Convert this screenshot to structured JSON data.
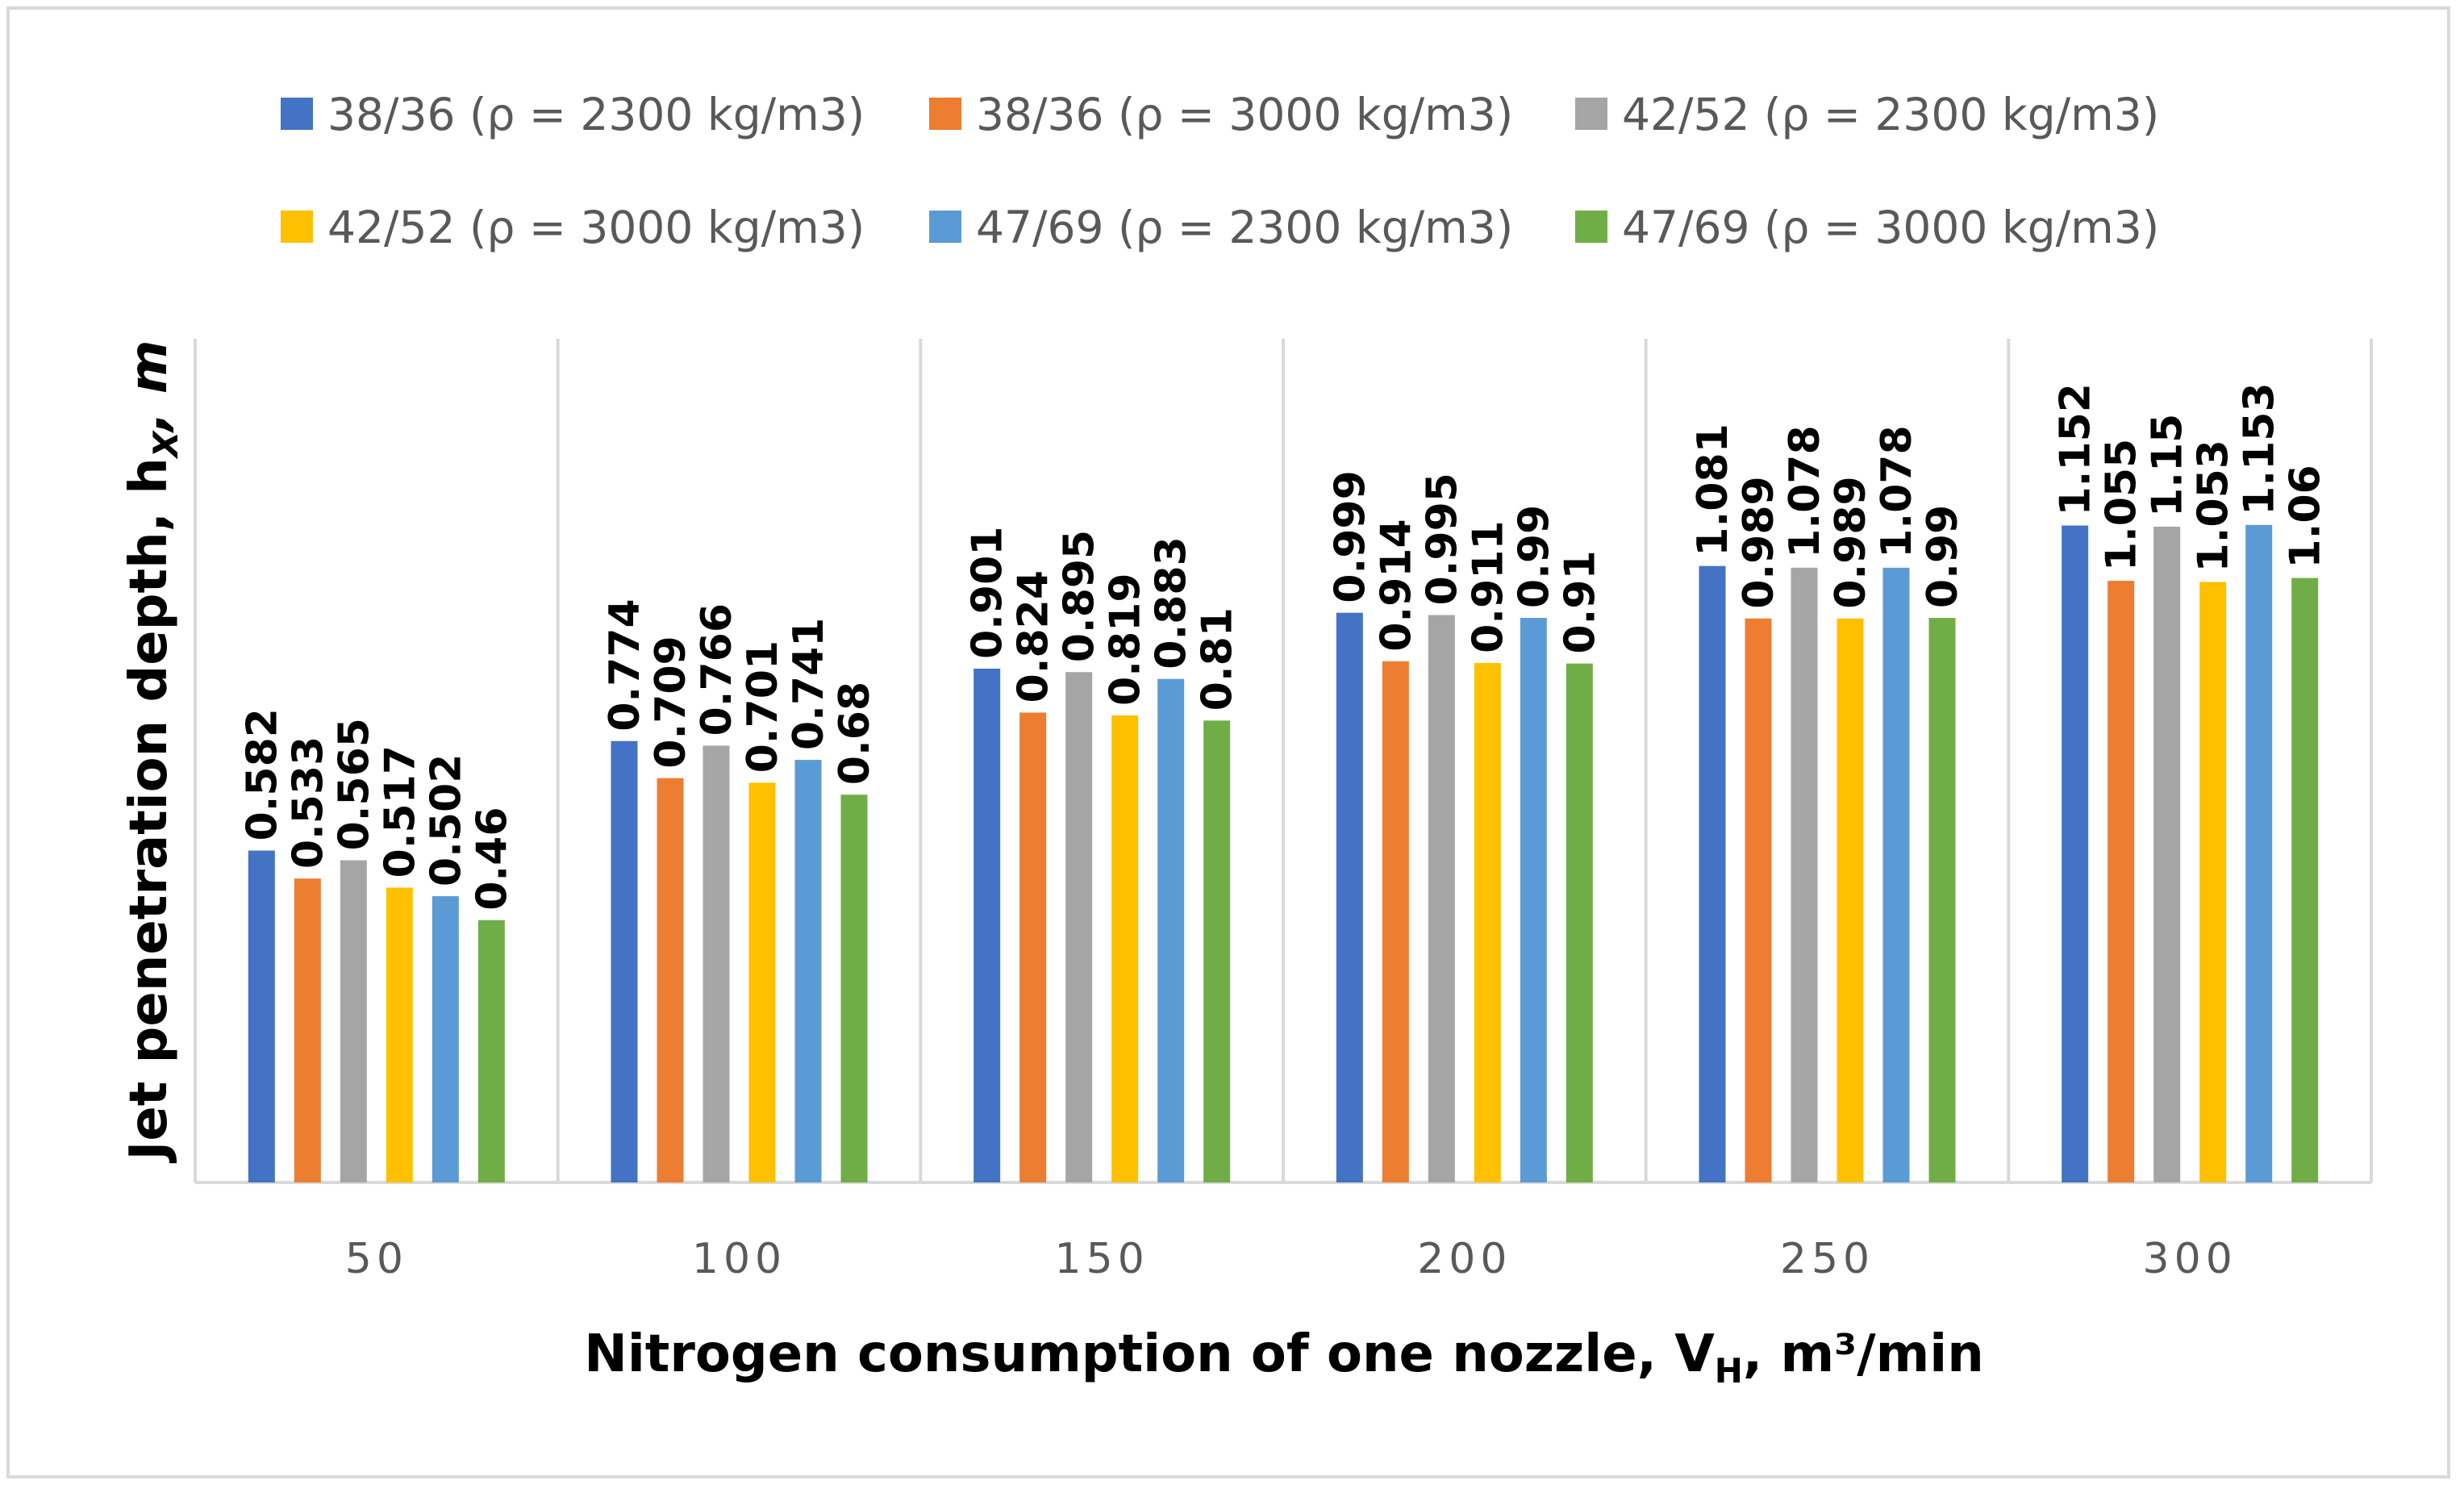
{
  "chart_data": {
    "type": "bar",
    "categories": [
      "50",
      "100",
      "150",
      "200",
      "250",
      "300"
    ],
    "series": [
      {
        "name": "38/36 (ρ = 2300 kg/m3)",
        "color": "#4472c4",
        "values": [
          0.582,
          0.774,
          0.901,
          0.999,
          1.081,
          1.152
        ]
      },
      {
        "name": "38/36 (ρ = 3000 kg/m3)",
        "color": "#ed7d31",
        "values": [
          0.533,
          0.709,
          0.824,
          0.914,
          0.989,
          1.055
        ]
      },
      {
        "name": "42/52 (ρ = 2300 kg/m3)",
        "color": "#a5a5a5",
        "values": [
          0.565,
          0.766,
          0.895,
          0.995,
          1.078,
          1.15
        ]
      },
      {
        "name": "42/52 (ρ = 3000 kg/m3)",
        "color": "#ffc000",
        "values": [
          0.517,
          0.701,
          0.819,
          0.911,
          0.989,
          1.053
        ]
      },
      {
        "name": "47/69 (ρ = 2300 kg/m3)",
        "color": "#5b9bd5",
        "values": [
          0.502,
          0.741,
          0.883,
          0.99,
          1.078,
          1.153
        ]
      },
      {
        "name": "47/69 (ρ = 3000 kg/m3)",
        "color": "#70ad47",
        "values": [
          0.46,
          0.68,
          0.81,
          0.91,
          0.99,
          1.06
        ]
      }
    ],
    "xlabel": {
      "main": "Nitrogen consumption of one nozzle, V",
      "sub": "H",
      "rest": ", m³/min"
    },
    "ylabel": {
      "main": "Jet penetration depth, h",
      "sub": "X",
      "rest": ", m"
    },
    "ylim": [
      0,
      1.4
    ],
    "legend_position": "top",
    "gridlines": "vertical-category-separators"
  }
}
